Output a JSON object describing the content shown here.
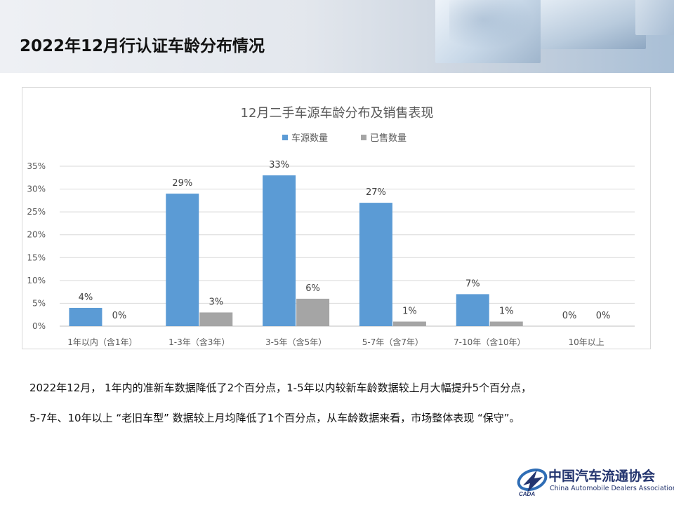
{
  "page": {
    "title": "2022年12月行认证车龄分布情况"
  },
  "chart_data": {
    "type": "bar",
    "title": "12月二手车源车龄分布及销售表现",
    "categories": [
      "1年以内（含1年）",
      "1-3年（含3年）",
      "3-5年（含5年）",
      "5-7年（含7年）",
      "7-10年（含10年）",
      "10年以上"
    ],
    "series": [
      {
        "name": "车源数量",
        "values": [
          4,
          29,
          33,
          27,
          7,
          0
        ],
        "labels": [
          "4%",
          "29%",
          "33%",
          "27%",
          "7%",
          "0%"
        ],
        "color": "#5b9bd5"
      },
      {
        "name": "已售数量",
        "values": [
          0,
          3,
          6,
          1,
          1,
          0
        ],
        "labels": [
          "0%",
          "3%",
          "6%",
          "1%",
          "1%",
          "0%"
        ],
        "color": "#a5a5a5"
      }
    ],
    "yticks": [
      "0%",
      "5%",
      "10%",
      "15%",
      "20%",
      "25%",
      "30%",
      "35%"
    ],
    "ylim": [
      0,
      35
    ],
    "grid": true,
    "legend": "top-center"
  },
  "summary": {
    "line1": "2022年12月， 1年内的准新车数据降低了2个百分点，1-5年以内较新车龄数据较上月大幅提升5个百分点，",
    "line2": "5-7年、10年以上 “老旧车型” 数据较上月均降低了1个百分点，从车龄数据来看，市场整体表现 “保守”。"
  },
  "logo": {
    "cn": "中国汽车流通协会",
    "en": "China Automobile Dealers Association",
    "mark": "CADA",
    "primary_color": "#24356f",
    "accent_color": "#2f6db5"
  }
}
